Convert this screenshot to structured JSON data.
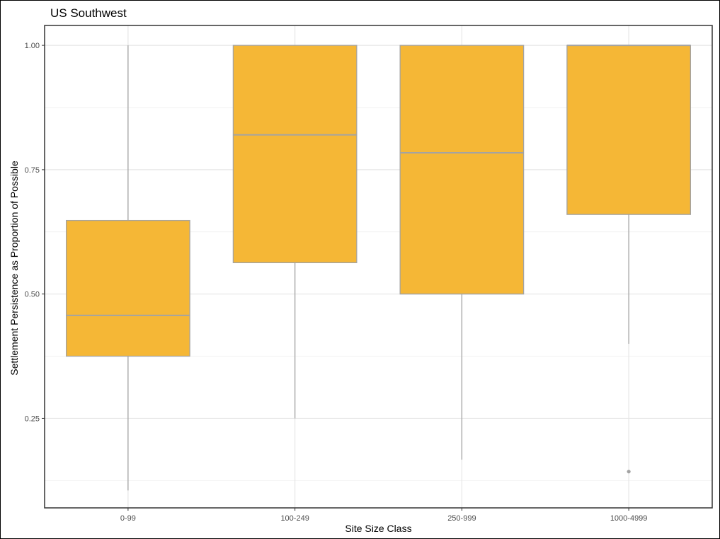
{
  "chart_data": {
    "type": "boxplot",
    "title": "US Southwest",
    "xlabel": "Site Size Class",
    "ylabel": "Settlement Persistence as Proportion of Possible",
    "ylim": [
      0.07,
      1.04
    ],
    "yticks": [
      0.25,
      0.5,
      0.75,
      1.0
    ],
    "ytick_labels": [
      "0.25",
      "0.50",
      "0.75",
      "1.00"
    ],
    "grid": true,
    "fill_color": "#F5B736",
    "line_color": "#A3A3A3",
    "categories": [
      "0-99",
      "100-249",
      "250-999",
      "1000-4999"
    ],
    "boxes": [
      {
        "category": "0-99",
        "whisker_low": 0.105,
        "q1": 0.375,
        "median": 0.457,
        "q3": 0.648,
        "whisker_high": 1.0,
        "outliers": []
      },
      {
        "category": "100-249",
        "whisker_low": 0.25,
        "q1": 0.563,
        "median": 0.82,
        "q3": 1.0,
        "whisker_high": 1.0,
        "outliers": []
      },
      {
        "category": "250-999",
        "whisker_low": 0.167,
        "q1": 0.5,
        "median": 0.784,
        "q3": 1.0,
        "whisker_high": 1.0,
        "outliers": []
      },
      {
        "category": "1000-4999",
        "whisker_low": 0.4,
        "q1": 0.66,
        "median": 1.0,
        "q3": 1.0,
        "whisker_high": 1.0,
        "outliers": [
          0.143
        ]
      }
    ]
  }
}
